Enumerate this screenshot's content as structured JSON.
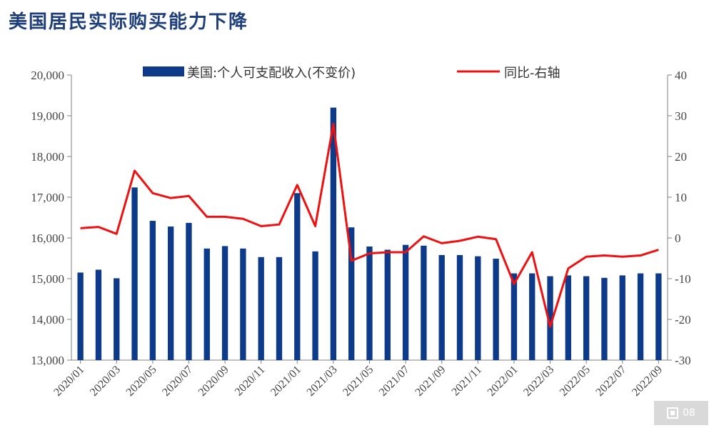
{
  "title": "美国居民实际购买能力下降",
  "badge": {
    "icon": "page-number-icon",
    "text": "08"
  },
  "chart_data": {
    "type": "bar+line",
    "title": "美国居民实际购买能力下降",
    "categories": [
      "2020/01",
      "2020/02",
      "2020/03",
      "2020/04",
      "2020/05",
      "2020/06",
      "2020/07",
      "2020/08",
      "2020/09",
      "2020/10",
      "2020/11",
      "2020/12",
      "2021/01",
      "2021/02",
      "2021/03",
      "2021/04",
      "2021/05",
      "2021/06",
      "2021/07",
      "2021/08",
      "2021/09",
      "2021/10",
      "2021/11",
      "2021/12",
      "2022/01",
      "2022/02",
      "2022/03",
      "2022/04",
      "2022/05",
      "2022/06",
      "2022/07",
      "2022/08",
      "2022/09"
    ],
    "x_tick_labels": [
      "2020/01",
      "2020/03",
      "2020/05",
      "2020/07",
      "2020/09",
      "2020/11",
      "2021/01",
      "2021/03",
      "2021/05",
      "2021/07",
      "2021/09",
      "2021/11",
      "2022/01",
      "2022/03",
      "2022/05",
      "2022/07",
      "2022/09"
    ],
    "series": [
      {
        "name": "美国:个人可支配收入(不变价)",
        "type": "bar",
        "axis": "left",
        "color": "#0e3a8a",
        "values": [
          15150,
          15220,
          15010,
          17240,
          16420,
          16280,
          16370,
          15740,
          15800,
          15740,
          15530,
          15530,
          17100,
          15670,
          19200,
          16260,
          15790,
          15710,
          15830,
          15810,
          15580,
          15580,
          15550,
          15490,
          15130,
          15130,
          15060,
          15080,
          15060,
          15020,
          15080,
          15130,
          15130
        ]
      },
      {
        "name": "同比-右轴",
        "type": "line",
        "axis": "right",
        "color": "#ee1111",
        "values": [
          2.4,
          2.7,
          1.0,
          16.5,
          11.0,
          9.8,
          10.3,
          5.2,
          5.2,
          4.7,
          2.9,
          3.3,
          13.0,
          2.9,
          28.0,
          -5.6,
          -3.8,
          -3.5,
          -3.5,
          0.4,
          -1.3,
          -0.7,
          0.3,
          -0.3,
          -11.3,
          -3.5,
          -21.8,
          -7.5,
          -4.6,
          -4.3,
          -4.6,
          -4.3,
          -2.9
        ]
      }
    ],
    "y_left": {
      "min": 13000,
      "max": 20000,
      "ticks": [
        "13,000",
        "14,000",
        "15,000",
        "16,000",
        "17,000",
        "18,000",
        "19,000",
        "20,000"
      ]
    },
    "y_right": {
      "min": -30,
      "max": 40,
      "ticks": [
        "-30",
        "-20",
        "-10",
        "0",
        "10",
        "20",
        "30",
        "40"
      ]
    },
    "legend_position": "top"
  }
}
